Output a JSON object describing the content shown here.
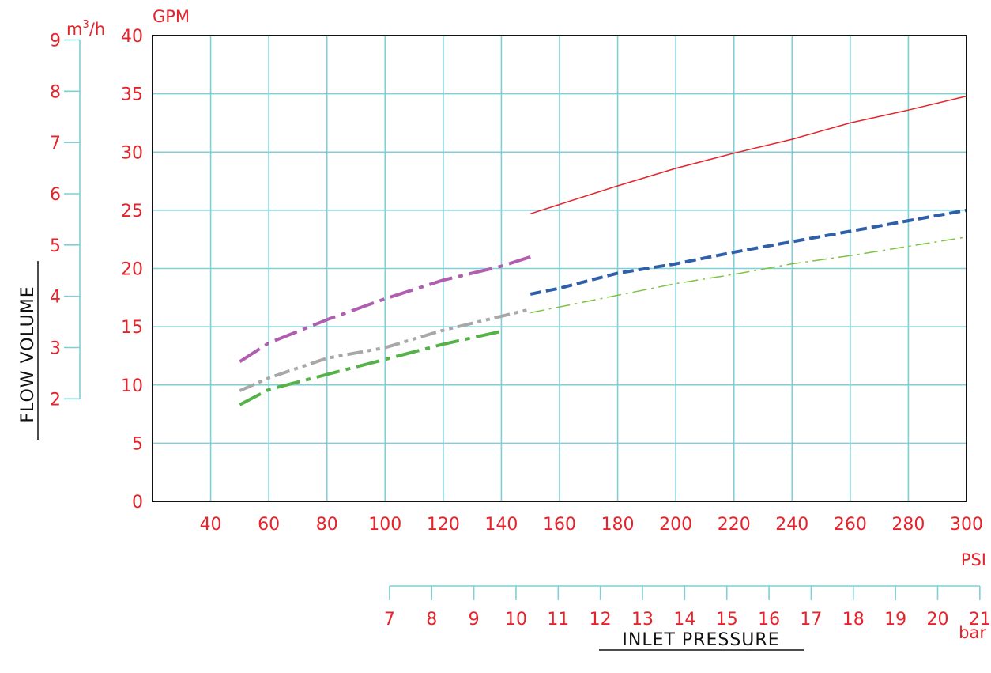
{
  "chart_data": {
    "type": "line",
    "title": "",
    "xlabel": "INLET PRESSURE",
    "ylabel": "FLOW VOLUME",
    "xunit": "PSI",
    "yunit": "GPM",
    "xlim": [
      20,
      300
    ],
    "ylim": [
      0,
      40
    ],
    "grid": true,
    "legend": "none",
    "x_ticks": [
      40,
      60,
      80,
      100,
      120,
      140,
      160,
      180,
      200,
      220,
      240,
      260,
      280,
      300
    ],
    "y_ticks": [
      0,
      5,
      10,
      15,
      20,
      25,
      30,
      35,
      40
    ],
    "secondary_y": {
      "unit": "m³/h",
      "unit_base": "m",
      "unit_exp": "3",
      "unit_tail": "/h",
      "ticks": [
        2,
        3,
        4,
        5,
        6,
        7,
        8,
        9
      ]
    },
    "secondary_x": {
      "unit": "bar",
      "ticks": [
        7,
        8,
        9,
        10,
        11,
        12,
        13,
        14,
        15,
        16,
        17,
        18,
        19,
        20,
        21
      ]
    },
    "series": [
      {
        "color": "#b05fb0",
        "dash": "long-dash-dot",
        "x": [
          50,
          60,
          80,
          100,
          120,
          140,
          150
        ],
        "y": [
          12,
          13.6,
          15.6,
          17.4,
          19,
          20.2,
          21
        ]
      },
      {
        "color": "#a8a8a8",
        "dash": "dash-dot-dot",
        "x": [
          50,
          60,
          80,
          100,
          120,
          140,
          150
        ],
        "y": [
          9.5,
          10.6,
          12.3,
          13.2,
          14.7,
          15.9,
          16.5
        ]
      },
      {
        "color": "#55b248",
        "dash": "long-dash-dot",
        "x": [
          50,
          60,
          80,
          100,
          120,
          140
        ],
        "y": [
          8.3,
          9.6,
          10.9,
          12.2,
          13.5,
          14.6
        ]
      },
      {
        "color": "#e6232a",
        "dash": "solid",
        "x": [
          150,
          160,
          180,
          200,
          220,
          240,
          260,
          280,
          300
        ],
        "y": [
          24.7,
          25.5,
          27.1,
          28.6,
          29.9,
          31.1,
          32.5,
          33.6,
          34.8
        ]
      },
      {
        "color": "#2f5fa8",
        "dash": "dash",
        "x": [
          150,
          160,
          180,
          200,
          220,
          240,
          260,
          280,
          300
        ],
        "y": [
          17.8,
          18.3,
          19.6,
          20.4,
          21.4,
          22.3,
          23.2,
          24.1,
          25
        ]
      },
      {
        "color": "#7fc241",
        "dash": "dash-dot-thin",
        "x": [
          150,
          160,
          180,
          200,
          220,
          240,
          260,
          280,
          300
        ],
        "y": [
          16.2,
          16.7,
          17.7,
          18.7,
          19.5,
          20.4,
          21.1,
          21.9,
          22.7
        ]
      }
    ]
  }
}
